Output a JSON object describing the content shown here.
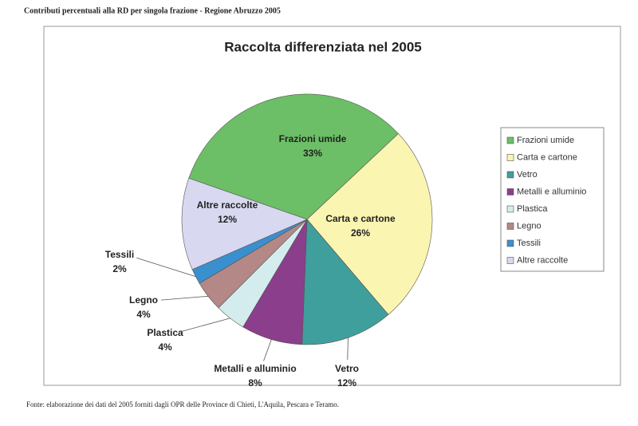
{
  "header": "Contributi percentuali alla RD per singola frazione - Regione Abruzzo 2005",
  "footer": "Fonte: elaborazione dei dati del 2005 forniti dagli OPR delle Province di Chieti, L'Aquila, Pescara e Teramo.",
  "chart_data": {
    "type": "pie",
    "title": "Raccolta differenziata nel 2005",
    "categories": [
      "Frazioni umide",
      "Carta e cartone",
      "Vetro",
      "Metalli e alluminio",
      "Plastica",
      "Legno",
      "Tessili",
      "Altre raccolte"
    ],
    "values": [
      33,
      26,
      12,
      8,
      4,
      4,
      2,
      12
    ],
    "value_labels": [
      "33%",
      "26%",
      "12%",
      "8%",
      "4%",
      "4%",
      "2%",
      "12%"
    ],
    "colors": [
      "#6cbf66",
      "#fbf5b2",
      "#3f9f9c",
      "#8b3e8c",
      "#d4ecee",
      "#b38886",
      "#3a8fcf",
      "#d8d8f0"
    ],
    "legend": "right"
  }
}
